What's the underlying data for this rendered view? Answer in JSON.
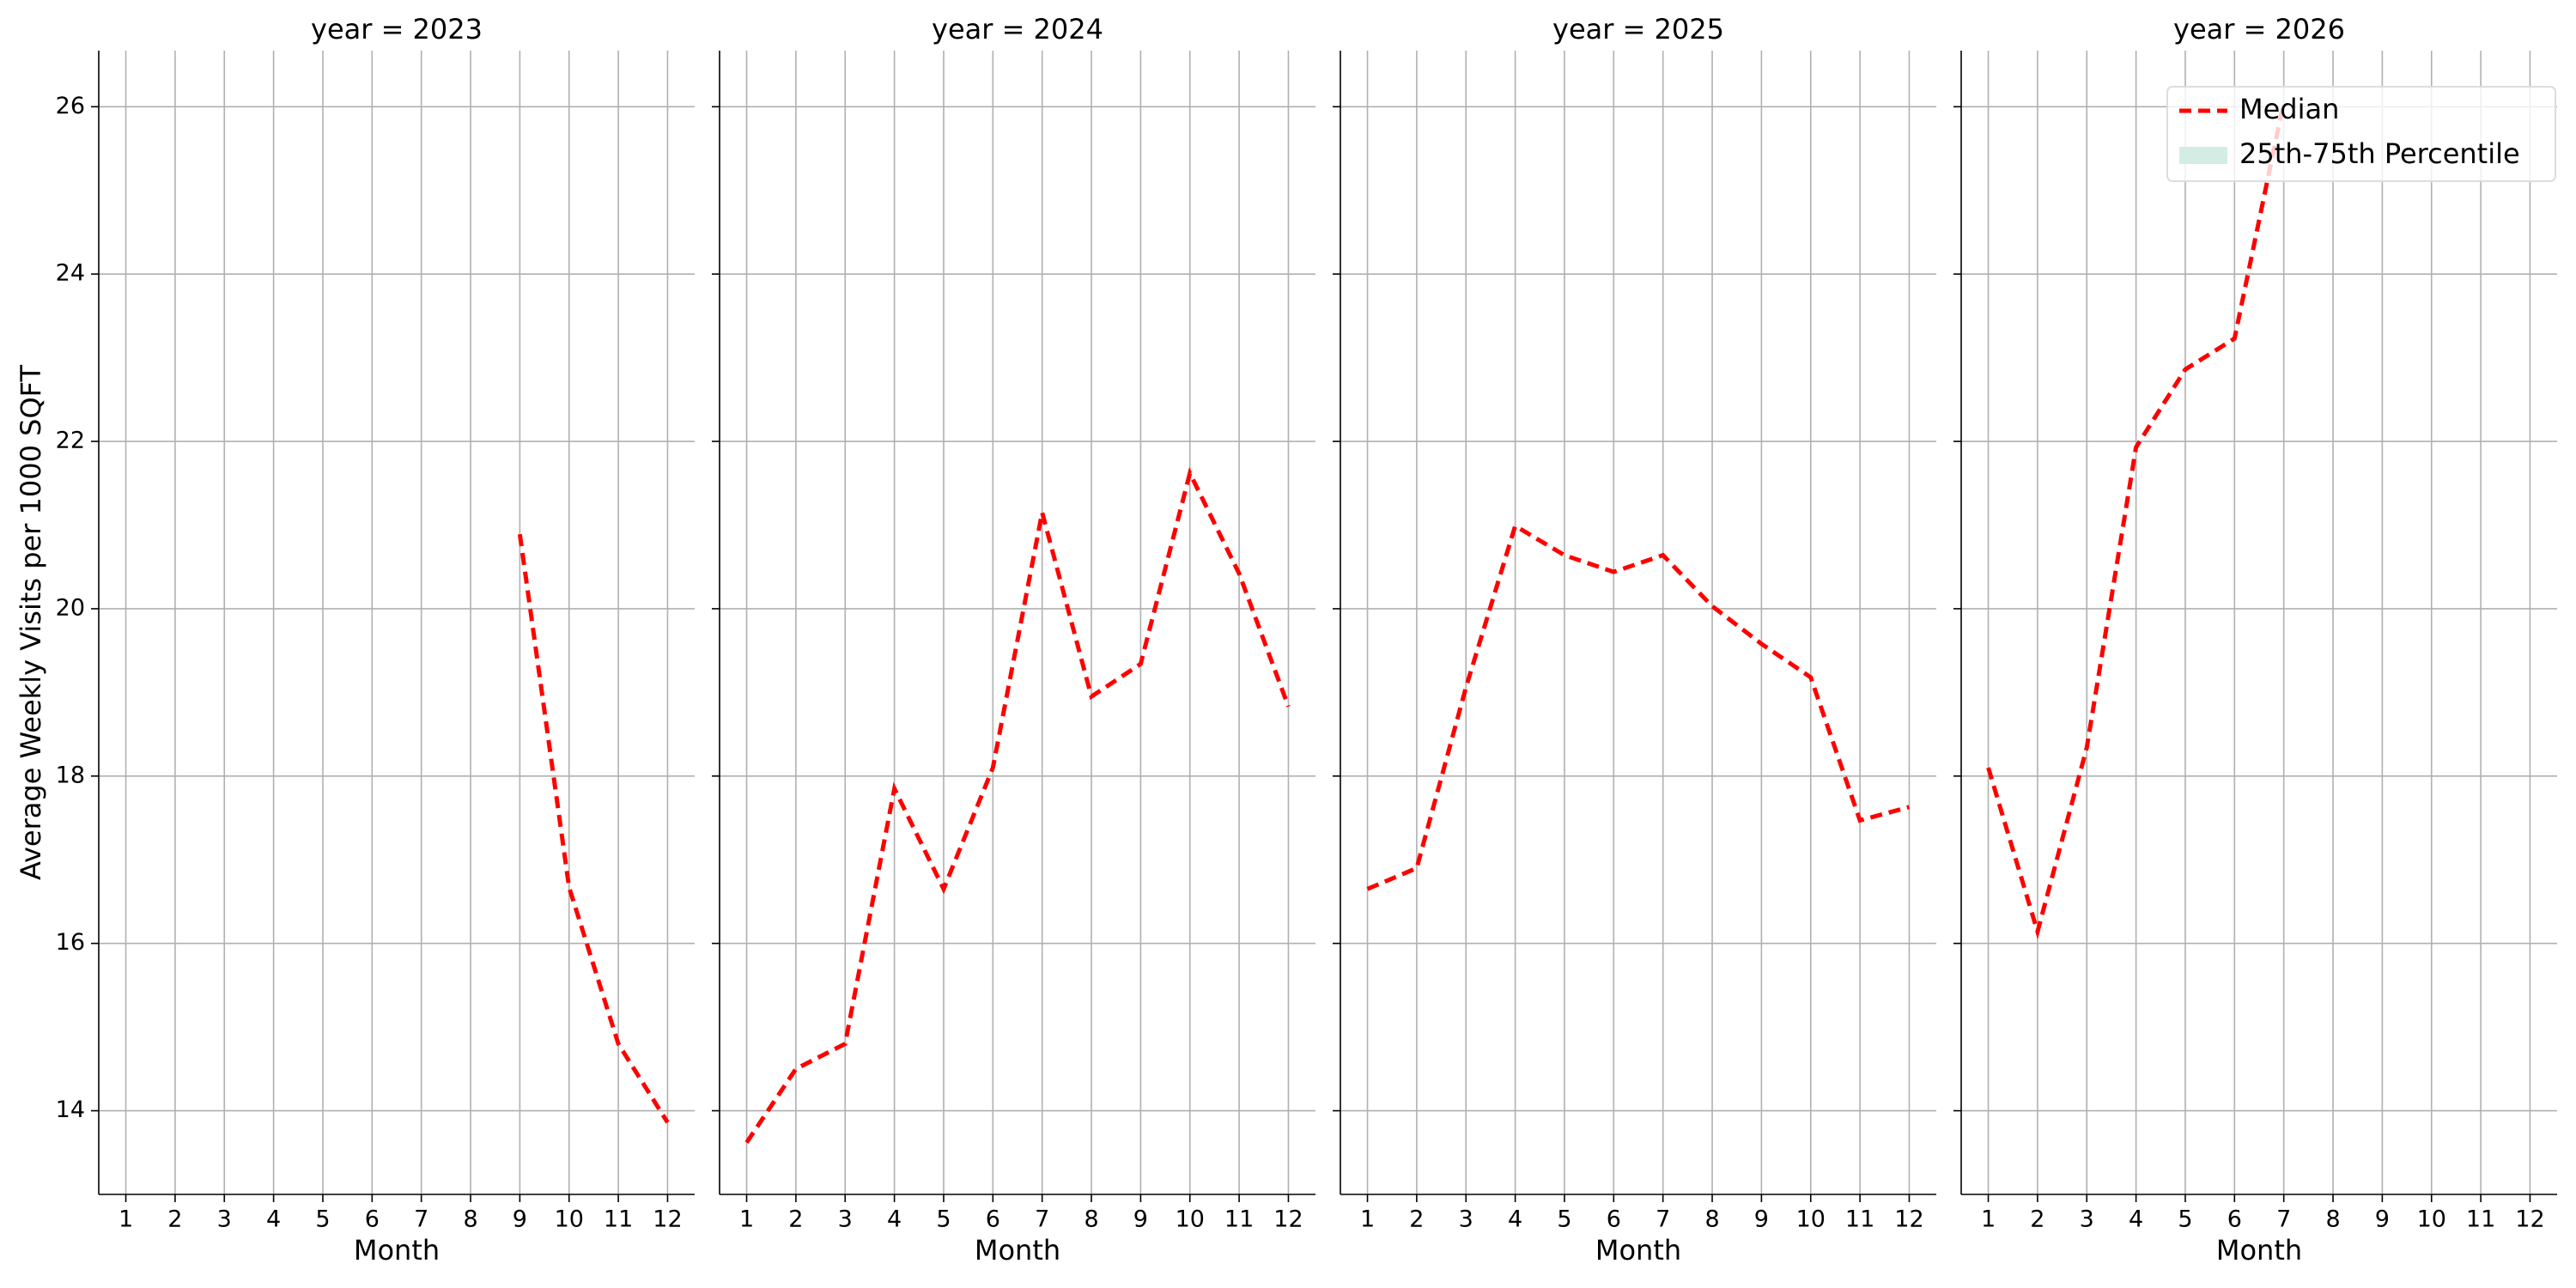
{
  "chart_data": [
    {
      "type": "line",
      "title": "year = 2023",
      "xlabel": "Month",
      "ylabel": "Average Weekly Visits per 1000 SQFT",
      "x": [
        1,
        2,
        3,
        4,
        5,
        6,
        7,
        8,
        9,
        10,
        11,
        12
      ],
      "xlim": [
        0.45,
        12.55
      ],
      "xticks": [
        1,
        2,
        3,
        4,
        5,
        6,
        7,
        8,
        9,
        10,
        11,
        12
      ],
      "ylim": [
        13.0,
        26.67
      ],
      "yticks": [
        14,
        16,
        18,
        20,
        22,
        24,
        26
      ],
      "show_ytick_labels": true,
      "grid": true,
      "series": [
        {
          "name": "Median",
          "color": "#ff0000",
          "values": [
            null,
            null,
            null,
            null,
            null,
            null,
            null,
            null,
            20.89,
            16.67,
            14.8,
            13.86
          ]
        }
      ]
    },
    {
      "type": "line",
      "title": "year = 2024",
      "xlabel": "Month",
      "x": [
        1,
        2,
        3,
        4,
        5,
        6,
        7,
        8,
        9,
        10,
        11,
        12
      ],
      "xlim": [
        0.45,
        12.55
      ],
      "xticks": [
        1,
        2,
        3,
        4,
        5,
        6,
        7,
        8,
        9,
        10,
        11,
        12
      ],
      "ylim": [
        13.0,
        26.67
      ],
      "yticks": [
        14,
        16,
        18,
        20,
        22,
        24,
        26
      ],
      "show_ytick_labels": false,
      "grid": true,
      "series": [
        {
          "name": "Median",
          "color": "#ff0000",
          "values": [
            13.62,
            14.5,
            14.8,
            17.85,
            16.65,
            18.1,
            21.15,
            18.95,
            19.34,
            21.62,
            20.42,
            18.83
          ]
        }
      ]
    },
    {
      "type": "line",
      "title": "year = 2025",
      "xlabel": "Month",
      "x": [
        1,
        2,
        3,
        4,
        5,
        6,
        7,
        8,
        9,
        10,
        11,
        12
      ],
      "xlim": [
        0.45,
        12.55
      ],
      "xticks": [
        1,
        2,
        3,
        4,
        5,
        6,
        7,
        8,
        9,
        10,
        11,
        12
      ],
      "ylim": [
        13.0,
        26.67
      ],
      "yticks": [
        14,
        16,
        18,
        20,
        22,
        24,
        26
      ],
      "show_ytick_labels": false,
      "grid": true,
      "series": [
        {
          "name": "Median",
          "color": "#ff0000",
          "values": [
            16.65,
            16.9,
            19.06,
            20.99,
            20.64,
            20.44,
            20.64,
            20.03,
            19.58,
            19.18,
            17.47,
            17.63
          ]
        }
      ]
    },
    {
      "type": "line",
      "title": "year = 2026",
      "xlabel": "Month",
      "x": [
        1,
        2,
        3,
        4,
        5,
        6,
        7,
        8,
        9,
        10,
        11,
        12
      ],
      "xlim": [
        0.45,
        12.55
      ],
      "xticks": [
        1,
        2,
        3,
        4,
        5,
        6,
        7,
        8,
        9,
        10,
        11,
        12
      ],
      "ylim": [
        13.0,
        26.67
      ],
      "yticks": [
        14,
        16,
        18,
        20,
        22,
        24,
        26
      ],
      "show_ytick_labels": false,
      "grid": true,
      "legend": "upper right",
      "series": [
        {
          "name": "Median",
          "color": "#ff0000",
          "values": [
            18.1,
            16.14,
            18.34,
            21.93,
            22.86,
            23.23,
            26.06,
            null,
            null,
            null,
            null,
            null
          ]
        },
        {
          "name": "25th-75th Percentile",
          "color": "#d4ede4",
          "values": [
            null,
            null,
            null,
            null,
            null,
            null,
            null,
            null,
            null,
            null,
            null,
            null
          ]
        }
      ]
    }
  ]
}
